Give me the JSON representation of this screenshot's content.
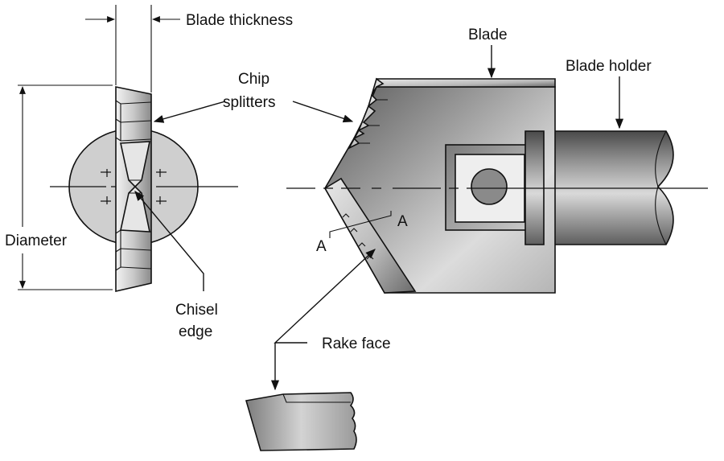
{
  "labels": {
    "blade_thickness": "Blade thickness",
    "chip_splitters_line1": "Chip",
    "chip_splitters_line2": "splitters",
    "blade": "Blade",
    "blade_holder": "Blade holder",
    "diameter": "Diameter",
    "chisel_edge_line1": "Chisel",
    "chisel_edge_line2": "edge",
    "section_a_left": "A",
    "section_a_right": "A",
    "rake_face": "Rake face"
  },
  "colors": {
    "ink": "#111111",
    "circle_fill": "#cfcfcf",
    "metal_light": "#e2e2e2",
    "metal_mid": "#a8a8a8",
    "metal_dark": "#6e6e6e",
    "background": "#ffffff"
  }
}
